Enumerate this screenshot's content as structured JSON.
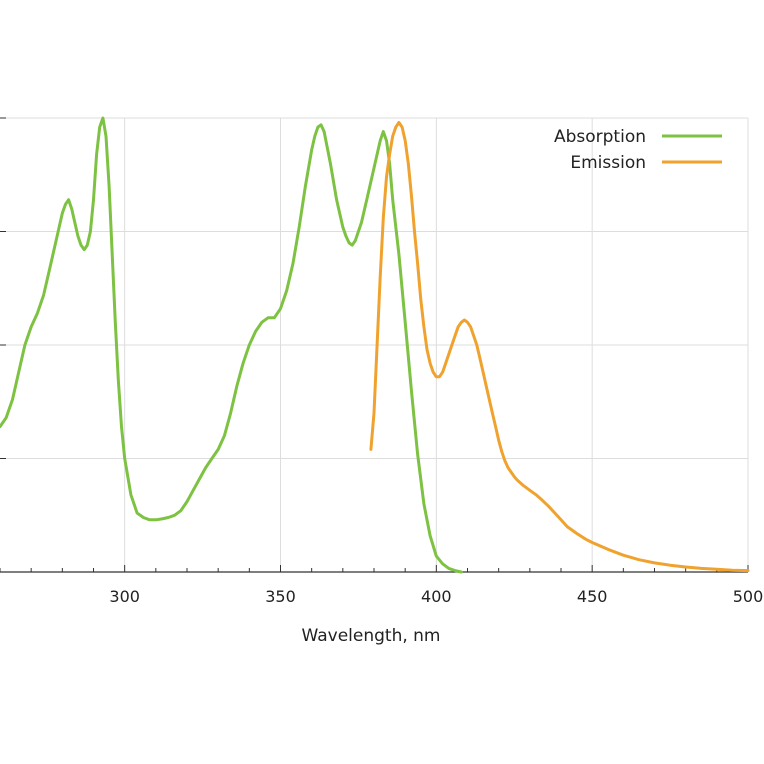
{
  "chart_data": {
    "type": "line",
    "title": "",
    "xlabel": "Wavelength, nm",
    "ylabel": "",
    "xlim": [
      260,
      500
    ],
    "ylim": [
      0,
      1.0
    ],
    "x_ticks": [
      300,
      350,
      400,
      450,
      500
    ],
    "y_tick_values": [
      0,
      0.25,
      0.5,
      0.75,
      1.0
    ],
    "grid": true,
    "legend_position": "top-right",
    "series": [
      {
        "name": "Absorption",
        "color": "#7dc242",
        "points": [
          [
            260,
            0.32
          ],
          [
            262,
            0.34
          ],
          [
            264,
            0.38
          ],
          [
            266,
            0.44
          ],
          [
            268,
            0.5
          ],
          [
            270,
            0.54
          ],
          [
            272,
            0.57
          ],
          [
            274,
            0.61
          ],
          [
            276,
            0.67
          ],
          [
            278,
            0.73
          ],
          [
            280,
            0.79
          ],
          [
            281,
            0.81
          ],
          [
            282,
            0.82
          ],
          [
            283,
            0.8
          ],
          [
            284,
            0.77
          ],
          [
            285,
            0.74
          ],
          [
            286,
            0.72
          ],
          [
            287,
            0.71
          ],
          [
            288,
            0.72
          ],
          [
            289,
            0.75
          ],
          [
            290,
            0.82
          ],
          [
            291,
            0.92
          ],
          [
            292,
            0.98
          ],
          [
            293,
            1.0
          ],
          [
            294,
            0.96
          ],
          [
            295,
            0.85
          ],
          [
            296,
            0.7
          ],
          [
            297,
            0.55
          ],
          [
            298,
            0.42
          ],
          [
            299,
            0.32
          ],
          [
            300,
            0.25
          ],
          [
            302,
            0.17
          ],
          [
            304,
            0.13
          ],
          [
            306,
            0.12
          ],
          [
            308,
            0.115
          ],
          [
            310,
            0.115
          ],
          [
            312,
            0.117
          ],
          [
            314,
            0.12
          ],
          [
            316,
            0.125
          ],
          [
            318,
            0.135
          ],
          [
            320,
            0.155
          ],
          [
            322,
            0.18
          ],
          [
            324,
            0.205
          ],
          [
            326,
            0.23
          ],
          [
            328,
            0.25
          ],
          [
            330,
            0.27
          ],
          [
            332,
            0.3
          ],
          [
            334,
            0.35
          ],
          [
            336,
            0.41
          ],
          [
            338,
            0.46
          ],
          [
            340,
            0.5
          ],
          [
            342,
            0.53
          ],
          [
            344,
            0.55
          ],
          [
            346,
            0.56
          ],
          [
            348,
            0.56
          ],
          [
            350,
            0.58
          ],
          [
            352,
            0.62
          ],
          [
            354,
            0.68
          ],
          [
            356,
            0.76
          ],
          [
            358,
            0.85
          ],
          [
            360,
            0.93
          ],
          [
            361,
            0.96
          ],
          [
            362,
            0.98
          ],
          [
            363,
            0.985
          ],
          [
            364,
            0.97
          ],
          [
            366,
            0.9
          ],
          [
            368,
            0.82
          ],
          [
            370,
            0.76
          ],
          [
            371,
            0.74
          ],
          [
            372,
            0.725
          ],
          [
            373,
            0.72
          ],
          [
            374,
            0.73
          ],
          [
            376,
            0.77
          ],
          [
            378,
            0.83
          ],
          [
            380,
            0.89
          ],
          [
            382,
            0.95
          ],
          [
            383,
            0.97
          ],
          [
            384,
            0.95
          ],
          [
            385,
            0.9
          ],
          [
            386,
            0.82
          ],
          [
            388,
            0.7
          ],
          [
            390,
            0.55
          ],
          [
            392,
            0.4
          ],
          [
            394,
            0.26
          ],
          [
            396,
            0.15
          ],
          [
            398,
            0.08
          ],
          [
            400,
            0.035
          ],
          [
            402,
            0.018
          ],
          [
            404,
            0.008
          ],
          [
            406,
            0.003
          ],
          [
            408,
            0.0
          ]
        ]
      },
      {
        "name": "Emission",
        "color": "#f0a22e",
        "points": [
          [
            379,
            0.27
          ],
          [
            380,
            0.35
          ],
          [
            381,
            0.5
          ],
          [
            382,
            0.65
          ],
          [
            383,
            0.78
          ],
          [
            384,
            0.87
          ],
          [
            385,
            0.92
          ],
          [
            386,
            0.96
          ],
          [
            387,
            0.98
          ],
          [
            388,
            0.99
          ],
          [
            389,
            0.98
          ],
          [
            390,
            0.95
          ],
          [
            391,
            0.9
          ],
          [
            392,
            0.83
          ],
          [
            393,
            0.75
          ],
          [
            394,
            0.68
          ],
          [
            395,
            0.6
          ],
          [
            396,
            0.54
          ],
          [
            397,
            0.49
          ],
          [
            398,
            0.46
          ],
          [
            399,
            0.44
          ],
          [
            400,
            0.43
          ],
          [
            401,
            0.43
          ],
          [
            402,
            0.44
          ],
          [
            403,
            0.46
          ],
          [
            404,
            0.48
          ],
          [
            405,
            0.5
          ],
          [
            406,
            0.52
          ],
          [
            407,
            0.54
          ],
          [
            408,
            0.55
          ],
          [
            409,
            0.555
          ],
          [
            410,
            0.55
          ],
          [
            411,
            0.54
          ],
          [
            412,
            0.52
          ],
          [
            413,
            0.5
          ],
          [
            414,
            0.47
          ],
          [
            415,
            0.44
          ],
          [
            416,
            0.41
          ],
          [
            417,
            0.38
          ],
          [
            418,
            0.35
          ],
          [
            419,
            0.32
          ],
          [
            420,
            0.29
          ],
          [
            421,
            0.265
          ],
          [
            422,
            0.245
          ],
          [
            423,
            0.23
          ],
          [
            424,
            0.22
          ],
          [
            425,
            0.21
          ],
          [
            426,
            0.202
          ],
          [
            428,
            0.19
          ],
          [
            430,
            0.18
          ],
          [
            432,
            0.17
          ],
          [
            434,
            0.158
          ],
          [
            436,
            0.145
          ],
          [
            438,
            0.13
          ],
          [
            440,
            0.115
          ],
          [
            442,
            0.1
          ],
          [
            445,
            0.085
          ],
          [
            448,
            0.072
          ],
          [
            450,
            0.065
          ],
          [
            455,
            0.05
          ],
          [
            460,
            0.037
          ],
          [
            465,
            0.027
          ],
          [
            470,
            0.02
          ],
          [
            475,
            0.015
          ],
          [
            480,
            0.011
          ],
          [
            485,
            0.008
          ],
          [
            490,
            0.006
          ],
          [
            495,
            0.004
          ],
          [
            500,
            0.003
          ]
        ]
      }
    ]
  }
}
